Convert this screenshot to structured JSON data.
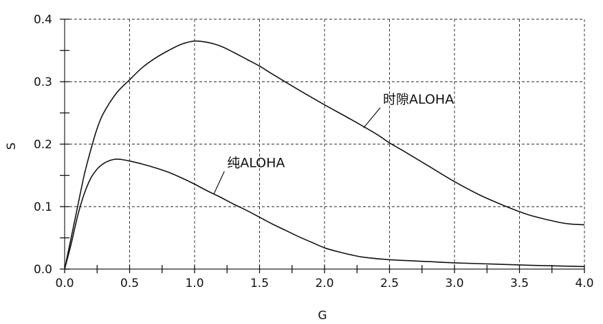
{
  "chart_data": {
    "type": "line",
    "xlabel": "G",
    "ylabel": "S",
    "xlim": [
      0,
      4.0
    ],
    "ylim": [
      0,
      0.4
    ],
    "xticks": [
      0.0,
      0.5,
      1.0,
      1.5,
      2.0,
      2.5,
      3.0,
      3.5,
      4.0
    ],
    "xtick_labels": [
      "0.0",
      "0.5",
      "1.0",
      "1.5",
      "2.0",
      "2.5",
      "3.0",
      "3.5",
      "4.0"
    ],
    "yticks": [
      0.0,
      0.1,
      0.2,
      0.3,
      0.4
    ],
    "ytick_labels": [
      "0.0",
      "0.1",
      "0.2",
      "0.3",
      "0.4"
    ],
    "grid": true,
    "series": [
      {
        "name": "时隙ALOHA",
        "x": [
          0,
          0.05,
          0.1,
          0.15,
          0.2,
          0.25,
          0.3,
          0.4,
          0.5,
          0.6,
          0.7,
          0.8,
          0.9,
          1.0,
          1.1,
          1.2,
          1.3,
          1.4,
          1.5,
          1.6,
          1.8,
          2.0,
          2.2,
          2.4,
          2.5,
          2.6,
          2.8,
          3.0,
          3.2,
          3.4,
          3.5,
          3.6,
          3.8,
          3.9,
          4.0
        ],
        "y": [
          0.0,
          0.05,
          0.1,
          0.15,
          0.19,
          0.225,
          0.25,
          0.282,
          0.303,
          0.323,
          0.338,
          0.35,
          0.36,
          0.365,
          0.363,
          0.357,
          0.347,
          0.336,
          0.325,
          0.312,
          0.287,
          0.263,
          0.24,
          0.216,
          0.202,
          0.19,
          0.165,
          0.14,
          0.118,
          0.1,
          0.092,
          0.085,
          0.075,
          0.072,
          0.071
        ]
      },
      {
        "name": "纯ALOHA",
        "x": [
          0,
          0.05,
          0.1,
          0.15,
          0.2,
          0.25,
          0.3,
          0.35,
          0.4,
          0.45,
          0.5,
          0.6,
          0.7,
          0.8,
          0.9,
          1.0,
          1.1,
          1.2,
          1.3,
          1.4,
          1.5,
          1.6,
          1.7,
          1.8,
          1.9,
          2.0,
          2.1,
          2.2,
          2.3,
          2.5,
          2.8,
          3.0,
          3.3,
          3.6,
          4.0
        ],
        "y": [
          0.0,
          0.04,
          0.085,
          0.12,
          0.145,
          0.16,
          0.169,
          0.174,
          0.176,
          0.175,
          0.173,
          0.168,
          0.162,
          0.155,
          0.146,
          0.136,
          0.125,
          0.115,
          0.104,
          0.094,
          0.083,
          0.072,
          0.062,
          0.052,
          0.043,
          0.034,
          0.028,
          0.023,
          0.019,
          0.015,
          0.012,
          0.01,
          0.008,
          0.006,
          0.004
        ]
      }
    ],
    "annotations": [
      {
        "text": "时隙ALOHA",
        "series": 0,
        "label_at": [
          2.45,
          0.265
        ],
        "point_at": [
          2.3,
          0.226
        ]
      },
      {
        "text": "纯ALOHA",
        "series": 1,
        "label_at": [
          1.25,
          0.163
        ],
        "point_at": [
          1.15,
          0.121
        ]
      }
    ]
  }
}
